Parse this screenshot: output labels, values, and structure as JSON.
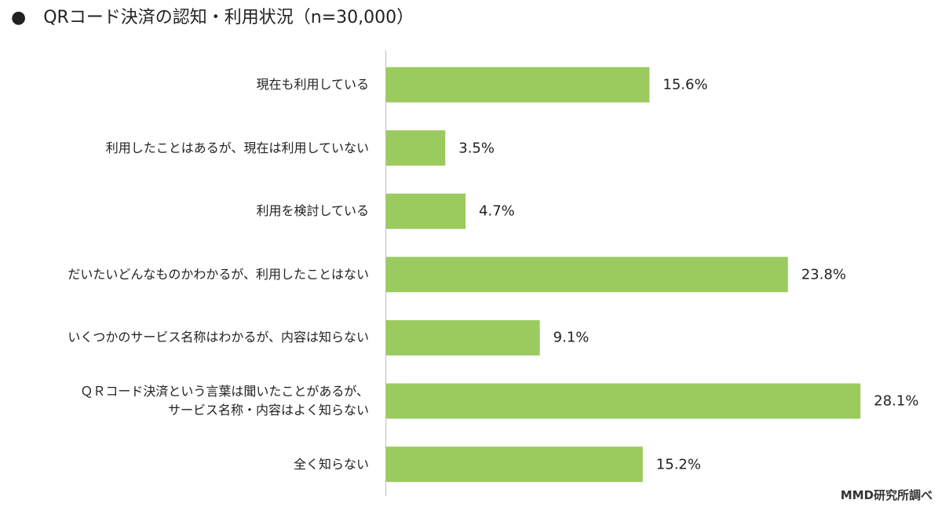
{
  "chart_data": {
    "type": "bar",
    "orientation": "horizontal",
    "title": "●　QRコード決済の認知・利用状況（n=30,000）",
    "source": "MMD研究所調べ",
    "categories": [
      "現在も利用している",
      "利用したことはあるが、現在は利用していない",
      "利用を検討している",
      "だいたいどんなものかわかるが、利用したことはない",
      "いくつかのサービス名称はわかるが、内容は知らない",
      "ＱＲコード決済という言葉は聞いたことがあるが、\nサービス名称・内容はよく知らない",
      "全く知らない"
    ],
    "values": [
      15.6,
      3.5,
      4.7,
      23.8,
      9.1,
      28.1,
      15.2
    ],
    "value_labels": [
      "15.6%",
      "3.5%",
      "4.7%",
      "23.8%",
      "9.1%",
      "28.1%",
      "15.2%"
    ],
    "color": "#9bcb5f"
  }
}
